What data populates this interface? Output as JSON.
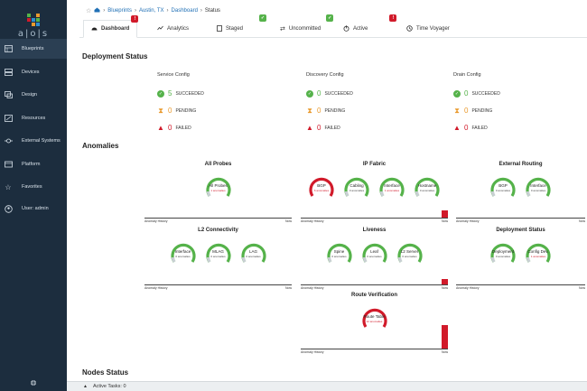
{
  "brand": "a|o|s",
  "colors": {
    "sidebar": "#1c2d3e",
    "green": "#55b24a",
    "red": "#d11a2a",
    "orange": "#e99a2e",
    "link": "#1f6fb5"
  },
  "sidebar": {
    "items": [
      {
        "label": "Blueprints",
        "icon": "blueprints-icon"
      },
      {
        "label": "Devices",
        "icon": "devices-icon"
      },
      {
        "label": "Design",
        "icon": "design-icon"
      },
      {
        "label": "Resources",
        "icon": "resources-icon"
      },
      {
        "label": "External Systems",
        "icon": "external-systems-icon"
      },
      {
        "label": "Platform",
        "icon": "platform-icon"
      },
      {
        "label": "Favorites",
        "icon": "star-icon"
      },
      {
        "label": "User: admin",
        "icon": "user-icon"
      }
    ]
  },
  "breadcrumb": {
    "blueprints": "Blueprints",
    "site": "Austin, TX",
    "dashboard": "Dashboard",
    "current": "Status"
  },
  "tabs": [
    {
      "label": "Dashboard",
      "icon": "dashboard-icon",
      "badge": "!"
    },
    {
      "label": "Analytics",
      "icon": "analytics-icon",
      "badge": ""
    },
    {
      "label": "Staged",
      "icon": "staged-icon",
      "badge": "✓"
    },
    {
      "label": "Uncommitted",
      "icon": "uncommitted-icon",
      "badge": "✓"
    },
    {
      "label": "Active",
      "icon": "active-icon",
      "badge": "!"
    },
    {
      "label": "Time Voyager",
      "icon": "time-voyager-icon",
      "badge": ""
    }
  ],
  "deployment": {
    "title": "Deployment Status",
    "columns": [
      {
        "title": "Service Config",
        "succeeded": "5",
        "pending": "0",
        "failed": "0"
      },
      {
        "title": "Discovery Config",
        "succeeded": "0",
        "pending": "0",
        "failed": "0"
      },
      {
        "title": "Drain Config",
        "succeeded": "0",
        "pending": "0",
        "failed": "0"
      }
    ],
    "labels": {
      "succeeded": "SUCCEEDED",
      "pending": "PENDING",
      "failed": "FAILED"
    }
  },
  "anomalies": {
    "title": "Anomalies",
    "history_label": "Anomaly History",
    "now_label": "Now",
    "groups": [
      {
        "title": "All Probes",
        "gauges": [
          {
            "label": "All Probes",
            "sub": "1 anomalies",
            "status": "ok-red"
          }
        ]
      },
      {
        "title": "IP Fabric",
        "gauges": [
          {
            "label": "BGP",
            "sub": "6 anomalies",
            "status": "bad"
          },
          {
            "label": "Cabling",
            "sub": "0 anomalies",
            "status": "ok"
          },
          {
            "label": "Interface",
            "sub": "1 anomalies",
            "status": "ok-red"
          },
          {
            "label": "Hostname",
            "sub": "0 anomalies",
            "status": "ok"
          }
        ]
      },
      {
        "title": "External Routing",
        "gauges": [
          {
            "label": "BGP",
            "sub": "0 anomalies",
            "status": "ok"
          },
          {
            "label": "Interface",
            "sub": "0 anomalies",
            "status": "ok"
          }
        ]
      },
      {
        "title": "L2 Connectivity",
        "gauges": [
          {
            "label": "Interface",
            "sub": "0 anomalies",
            "status": "ok"
          },
          {
            "label": "MLAG",
            "sub": "0 anomalies",
            "status": "ok"
          },
          {
            "label": "LAG",
            "sub": "0 anomalies",
            "status": "ok"
          }
        ]
      },
      {
        "title": "Liveness",
        "gauges": [
          {
            "label": "Spine",
            "sub": "0 anomalies",
            "status": "ok"
          },
          {
            "label": "Leaf",
            "sub": "0 anomalies",
            "status": "ok"
          },
          {
            "label": "L2 Server",
            "sub": "0 anomalies",
            "status": "ok"
          }
        ]
      },
      {
        "title": "Deployment Status",
        "gauges": [
          {
            "label": "Deployment",
            "sub": "0 anomalies",
            "status": "ok"
          },
          {
            "label": "Config Dev.",
            "sub": "1 anomalies",
            "status": "ok-red"
          }
        ]
      },
      {
        "title": "Route Verification",
        "gauges": [
          {
            "label": "Route Table",
            "sub": "12 anomalies",
            "status": "bad"
          }
        ]
      }
    ]
  },
  "nodes_title": "Nodes Status",
  "footer": {
    "active_tasks": "Active Tasks: 0"
  }
}
